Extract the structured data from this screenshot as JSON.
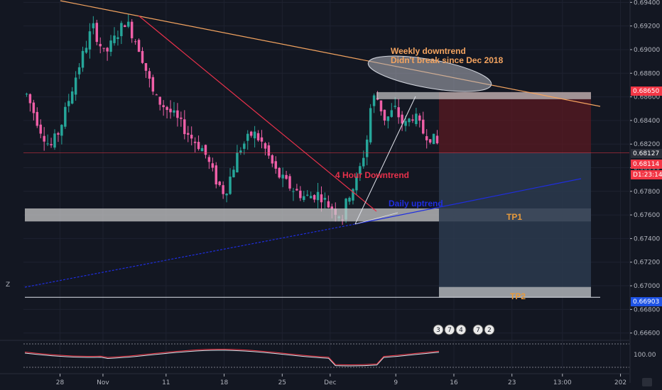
{
  "chart_data": {
    "type": "candlestick",
    "instrument_note": "",
    "price_axis": {
      "ylim": [
        0.6655,
        0.6942
      ],
      "ticks": [
        "0.69400",
        "0.69200",
        "0.69000",
        "0.68800",
        "0.68600",
        "0.68400",
        "0.68200",
        "0.68000",
        "0.67800",
        "0.67600",
        "0.67400",
        "0.67200",
        "0.67000",
        "0.66800",
        "0.66600"
      ],
      "tick_values": [
        0.694,
        0.692,
        0.69,
        0.688,
        0.686,
        0.684,
        0.682,
        0.68,
        0.678,
        0.676,
        0.674,
        0.672,
        0.67,
        0.668,
        0.666
      ]
    },
    "time_axis": {
      "labels": [
        "28",
        "Nov",
        "11",
        "18",
        "25",
        "Dec",
        "9",
        "16",
        "23",
        "13:00",
        "202"
      ],
      "label_index": [
        14,
        31,
        56,
        79,
        102,
        121,
        147,
        170,
        193,
        213,
        236
      ]
    },
    "price_tags": [
      {
        "label": "0.68650",
        "value": 0.6865,
        "color": "#f23645"
      },
      {
        "label": "0.68127",
        "value": 0.68127,
        "color": "#2a2e39"
      },
      {
        "label": "0.68114",
        "value": 0.68114,
        "color": "#f23645"
      },
      {
        "label": "D1:23:14",
        "value": 0.68,
        "color": "#f23645"
      },
      {
        "label": "0.66903",
        "value": 0.66903,
        "color": "#1e53e5"
      }
    ],
    "annotations": {
      "weekly": [
        "Weekly downtrend",
        "Didn't break since Dec 2018"
      ],
      "four_hour": "4 Hour Downtrend",
      "daily": "Daily uptrend",
      "tp1": "TP1",
      "tp2": "TP2"
    },
    "levels": {
      "current_price": 0.68127,
      "support_zone": [
        0.67545,
        0.67655
      ],
      "entry": 0.68127,
      "stop_zone": [
        0.6858,
        0.6864
      ],
      "tp1_zone": [
        0.67545,
        0.67655
      ],
      "tp2_zone": [
        0.66903,
        0.6699
      ],
      "tp2_line": 0.66903
    },
    "colors": {
      "up": "#26a69a",
      "down": "#ef5fa7",
      "weekly_line": "#f4a460",
      "four_hour_line": "#e8314b",
      "daily_line": "#1f2ee0",
      "stop": "#5a1a22",
      "target": "#2c3a4e",
      "zone": "#c8c8c8"
    },
    "indicator": {
      "label": "100.00",
      "value": 100.0
    },
    "events_badge": [
      "3",
      "7",
      "4",
      "7",
      "2"
    ]
  },
  "ui": {
    "corner_label": "Z",
    "icon": "tv-logo-icon"
  }
}
